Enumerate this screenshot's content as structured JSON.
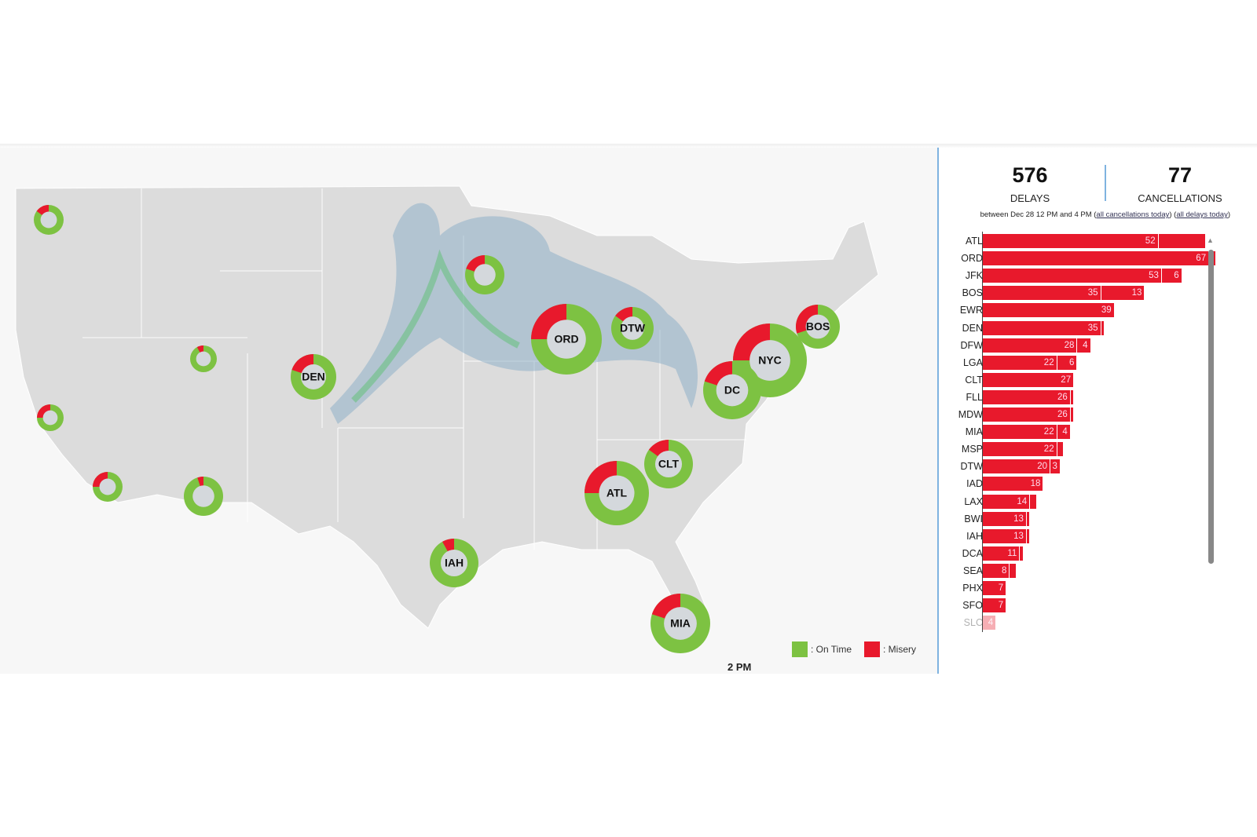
{
  "stats": {
    "delays": "576",
    "delays_label": "DELAYS",
    "cancellations": "77",
    "cancellations_label": "CANCELLATIONS",
    "range_text": "between Dec 28 12 PM and 4 PM (",
    "link_cancellations": "all cancellations today",
    "mid": ") (",
    "link_delays": "all delays today",
    "end": ")"
  },
  "legend": {
    "on_time": ": On Time",
    "misery": ": Misery",
    "colors": {
      "on_time": "#7dc242",
      "misery": "#e8192c"
    }
  },
  "time_label": "2 PM",
  "airports_map": [
    {
      "label": "",
      "misery": 0.15
    },
    {
      "label": "",
      "misery": 0.2
    },
    {
      "label": "ORD",
      "misery": 0.25
    },
    {
      "label": "DTW",
      "misery": 0.15
    },
    {
      "label": "BOS",
      "misery": 0.3
    },
    {
      "label": "NYC",
      "misery": 0.25
    },
    {
      "label": "DC",
      "misery": 0.2
    },
    {
      "label": "",
      "misery": 0.08
    },
    {
      "label": "DEN",
      "misery": 0.2
    },
    {
      "label": "",
      "misery": 0.25
    },
    {
      "label": "",
      "misery": 0.25
    },
    {
      "label": "",
      "misery": 0.05
    },
    {
      "label": "ATL",
      "misery": 0.25
    },
    {
      "label": "CLT",
      "misery": 0.15
    },
    {
      "label": "IAH",
      "misery": 0.08
    },
    {
      "label": "MIA",
      "misery": 0.2
    }
  ],
  "chart_data": {
    "type": "bar",
    "orientation": "horizontal",
    "stacked": true,
    "categories": [
      "ATL",
      "ORD",
      "JFK",
      "BOS",
      "EWR",
      "DEN",
      "DFW",
      "LGA",
      "CLT",
      "FLL",
      "MDW",
      "MIA",
      "MSP",
      "DTW",
      "IAD",
      "LAX",
      "BWI",
      "IAH",
      "DCA",
      "SEA",
      "PHX",
      "SFO",
      "SLC"
    ],
    "series": [
      {
        "name": "Delays",
        "values": [
          52,
          67,
          53,
          35,
          39,
          35,
          28,
          22,
          27,
          26,
          26,
          22,
          22,
          20,
          18,
          14,
          13,
          13,
          11,
          8,
          7,
          7,
          4
        ]
      },
      {
        "name": "Cancellations",
        "values": [
          14,
          2,
          6,
          13,
          0,
          1,
          4,
          6,
          0,
          1,
          1,
          4,
          2,
          3,
          0,
          2,
          1,
          1,
          1,
          2,
          0,
          0,
          0
        ]
      }
    ]
  }
}
